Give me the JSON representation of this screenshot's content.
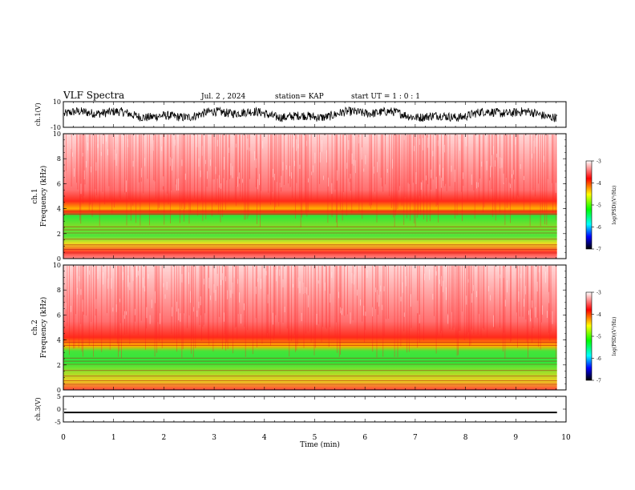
{
  "header": {
    "title": "VLF Spectra",
    "date": "Jul. 2 , 2024",
    "station": "station= KAP",
    "start_ut": "start UT =  1 : 0 : 1"
  },
  "chart_data": [
    {
      "type": "line",
      "panel": "ch1-waveform",
      "ylabel": "ch.1(V)",
      "ylim": [
        -10,
        10
      ],
      "yticks": [
        "10",
        "-10"
      ],
      "color": "#000000",
      "amplitude_range": [
        -6,
        6
      ]
    },
    {
      "type": "heatmap",
      "panel": "ch1-spectrogram",
      "ylabel_line1": "ch.1",
      "ylabel_line2": "Frequency (kHz)",
      "ylim": [
        0,
        10
      ],
      "yticks": [
        "0",
        "2",
        "4",
        "6",
        "8",
        "10"
      ],
      "colorbar": {
        "label": "log(PSD)(V²/Hz)",
        "ticks": [
          "-3",
          "-4",
          "-5",
          "-6",
          "-7"
        ],
        "range": [
          -7,
          -3
        ]
      },
      "bands_khz": [
        {
          "from": 0,
          "to": 0.3,
          "level": "red-yellow"
        },
        {
          "from": 0.3,
          "to": 1.0,
          "level": "red-yellow"
        },
        {
          "from": 1.0,
          "to": 2.6,
          "level": "green-yellow"
        },
        {
          "from": 2.6,
          "to": 3.4,
          "level": "green"
        },
        {
          "from": 3.4,
          "to": 4.6,
          "level": "red-yellow"
        },
        {
          "from": 4.6,
          "to": 10,
          "level": "red-white"
        }
      ]
    },
    {
      "type": "heatmap",
      "panel": "ch2-spectrogram",
      "ylabel_line1": "ch.2",
      "ylabel_line2": "Frequency (kHz)",
      "ylim": [
        0,
        10
      ],
      "yticks": [
        "0",
        "2",
        "4",
        "6",
        "8",
        "10"
      ],
      "colorbar": {
        "label": "log(PSD)(V²/Hz)",
        "ticks": [
          "-3",
          "-4",
          "-5",
          "-6",
          "-7"
        ],
        "range": [
          -7,
          -3
        ]
      },
      "bands_khz": [
        {
          "from": 0,
          "to": 0.5,
          "level": "red-yellow"
        },
        {
          "from": 0.5,
          "to": 2.0,
          "level": "green-yellow"
        },
        {
          "from": 2.0,
          "to": 3.2,
          "level": "green"
        },
        {
          "from": 3.2,
          "to": 4.5,
          "level": "red-yellow"
        },
        {
          "from": 4.5,
          "to": 10,
          "level": "red-white"
        }
      ]
    },
    {
      "type": "line",
      "panel": "ch3-waveform",
      "ylabel": "ch.3(V)",
      "ylim": [
        -5,
        5
      ],
      "yticks": [
        "5",
        "0",
        "-5"
      ],
      "color": "#000000",
      "amplitude_range": [
        -1.6,
        -1.0
      ],
      "xlabel": "Time (min)",
      "xlim": [
        0,
        10
      ],
      "xticks": [
        "0",
        "1",
        "2",
        "3",
        "4",
        "5",
        "6",
        "7",
        "8",
        "9",
        "10"
      ],
      "data_end_min": 9.82
    }
  ]
}
